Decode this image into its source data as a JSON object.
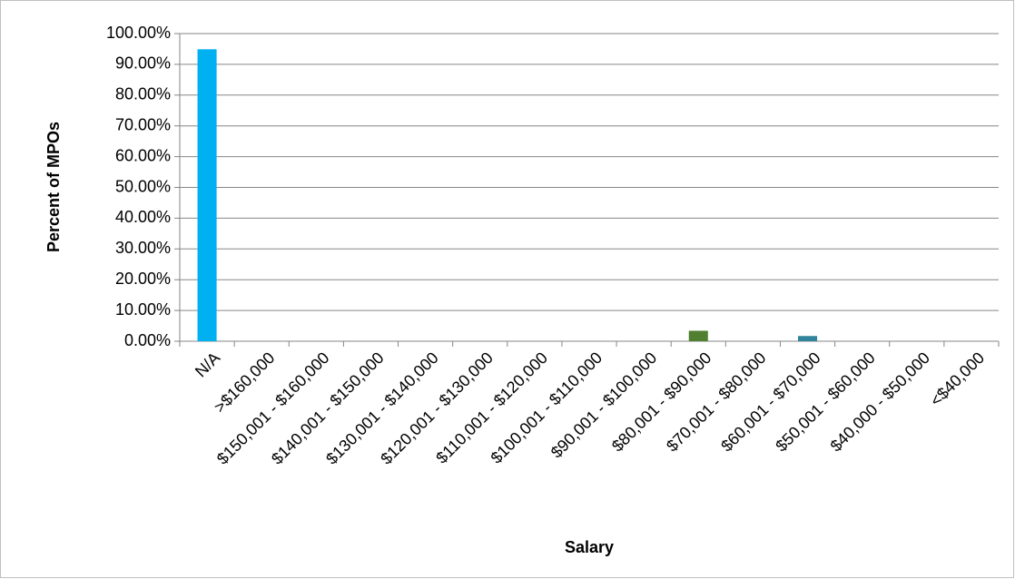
{
  "chart_data": {
    "type": "bar",
    "x_label": "Salary",
    "y_label": "Percent of MPOs",
    "categories": [
      "N/A",
      ">$160,000",
      "$150,001 - $160,000",
      "$140,001 - $150,000",
      "$130,001 - $140,000",
      "$120,001 - $130,000",
      "$110,001 - $120,000",
      "$100,001 - $110,000",
      "$90,001 - $100,000",
      "$80,001 - $90,000",
      "$70,001 - $80,000",
      "$60,001 - $70,000",
      "$50,001 - $60,000",
      "$40,000 - $50,000",
      "<$40,000"
    ],
    "values": [
      94.9,
      0,
      0,
      0,
      0,
      0,
      0,
      0,
      0,
      3.4,
      0,
      1.7,
      0,
      0,
      0
    ],
    "colors": [
      "#00b0f0",
      null,
      null,
      null,
      null,
      null,
      null,
      null,
      null,
      "#4f7f2f",
      null,
      "#31849b",
      null,
      null,
      null
    ],
    "ylim": [
      0,
      100
    ],
    "yticks": [
      {
        "value": 0,
        "label": "0.00%"
      },
      {
        "value": 10,
        "label": "10.00%"
      },
      {
        "value": 20,
        "label": "20.00%"
      },
      {
        "value": 30,
        "label": "30.00%"
      },
      {
        "value": 40,
        "label": "40.00%"
      },
      {
        "value": 50,
        "label": "50.00%"
      },
      {
        "value": 60,
        "label": "60.00%"
      },
      {
        "value": 70,
        "label": "70.00%"
      },
      {
        "value": 80,
        "label": "80.00%"
      },
      {
        "value": 90,
        "label": "90.00%"
      },
      {
        "value": 100,
        "label": "100.00%"
      }
    ],
    "grid": true
  }
}
